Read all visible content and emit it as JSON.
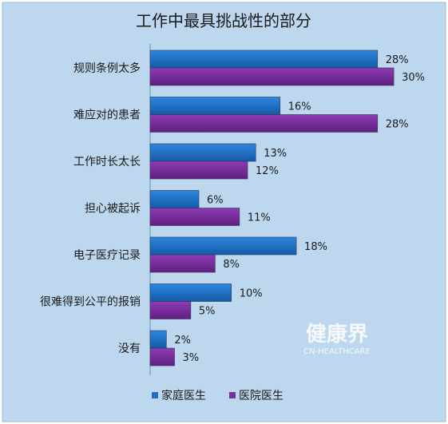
{
  "chart_data": {
    "type": "bar",
    "orientation": "horizontal",
    "title": "工作中最具挑战性的部分",
    "categories": [
      "规则条例太多",
      "难应对的患者",
      "工作时长太长",
      "担心被起诉",
      "电子医疗记录",
      "很难得到公平的报销",
      "没有"
    ],
    "series": [
      {
        "name": "家庭医生",
        "values": [
          28,
          16,
          13,
          6,
          18,
          10,
          2
        ],
        "color": "#1F6FC5"
      },
      {
        "name": "医院医生",
        "values": [
          30,
          28,
          12,
          11,
          8,
          5,
          3
        ],
        "color": "#7B2D9E"
      }
    ],
    "value_suffix": "%",
    "xlim": [
      0,
      30
    ],
    "grid": false,
    "legend_position": "bottom",
    "background_color": "#BDD7EE"
  },
  "watermark": {
    "main": "健康界",
    "sub": "CN-HEALTHCARE"
  }
}
